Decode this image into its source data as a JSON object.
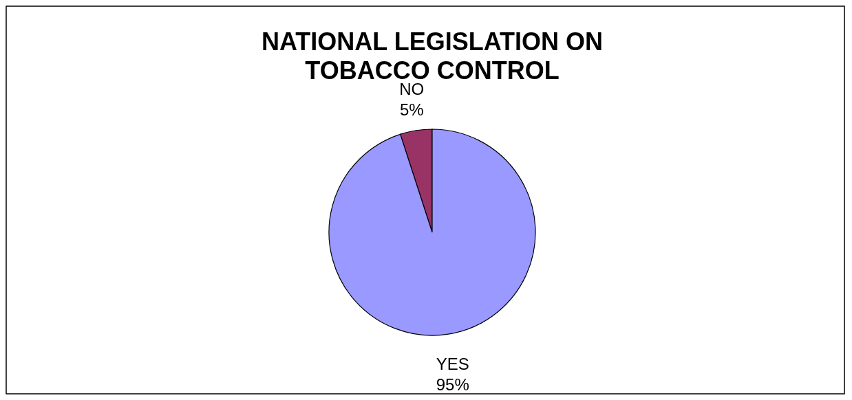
{
  "chart_data": {
    "type": "pie",
    "title": "NATIONAL LEGISLATION ON TOBACCO CONTROL",
    "categories": [
      "NO",
      "YES"
    ],
    "values": [
      5,
      95
    ],
    "colors": [
      "#993366",
      "#9999ff"
    ],
    "value_labels": [
      "5%",
      "95%"
    ]
  }
}
